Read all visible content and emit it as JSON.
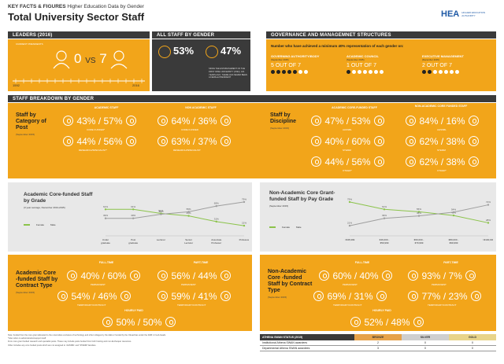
{
  "header": {
    "kicker_bold": "KEY FACTS & FIGURES",
    "kicker_rest": " Higher Education Data by Gender",
    "title": "Total University Sector Staff",
    "logo_text": "HEA",
    "logo_sub": "HIGHER EDUCATION AUTHORITY"
  },
  "leaders": {
    "bar_label": "LEADERS (2016)",
    "current_label": "CURRENT PRESIDENTS",
    "female": "0",
    "vs": "VS",
    "male": "7",
    "year_start": "1592",
    "year_end": "2016"
  },
  "all_staff": {
    "bar_label": "ALL STAFF BY GENDER",
    "female_pct": "53%",
    "male_pct": "47%",
    "note": "SINCE THE ESTABLISHMENT OF THE FIRST IRISH UNIVERSITY (1592), 424 YEARS AGO, THERE HAS NEVER BEEN A FEMALE PRESIDENT"
  },
  "governance": {
    "bar_label": "GOVERNANCE AND MANAGEMNET STRUCTURES",
    "intro": "Number who have achieved a minimum 40% representation of each gender on:",
    "items": [
      {
        "title": "GOVERNING AUTHORITY/BODY",
        "date": "(September 2015)",
        "value": "5 OUT OF 7",
        "filled": 5
      },
      {
        "title": "ACADEMIC COUNCIL",
        "date": "(September 2015)",
        "value": "1 OUT OF 7",
        "filled": 1
      },
      {
        "title": "EXECUTIVE MANAGEMENT",
        "date": "(December 2015)",
        "value": "2 OUT OF 7",
        "filled": 2
      }
    ]
  },
  "breakdown": {
    "bar_label": "STAFF BREAKDOWN BY GENDER",
    "post": {
      "title": "Staff by Category of Post",
      "date": "(September 2015)",
      "academic_head": "ACADEMIC STAFF",
      "nonacademic_head": "NON ACADEMIC STAFF",
      "rows": [
        {
          "a": "43%",
          "b": "57%",
          "label": "CORE FUNDED*"
        },
        {
          "a": "44%",
          "b": "56%",
          "label": "RESEARCH/SPECIALIST*"
        }
      ],
      "rows_na": [
        {
          "a": "64%",
          "b": "36%",
          "label": "CORE FUNDED"
        },
        {
          "a": "63%",
          "b": "37%",
          "label": "RESEARCH/SPECIALIST"
        }
      ]
    },
    "discipline": {
      "title": "Staff by Discipline",
      "date": "(September 2015)",
      "academic_head": "ACADEMIC CORE-FUNDED STAFF",
      "nonacademic_head": "NON-ACADEMIC CORE FUNDED STAFF",
      "rows": [
        {
          "a": "47%",
          "b": "53%",
          "label": "AHSSBL"
        },
        {
          "a": "40%",
          "b": "60%",
          "label": "STEMM"
        },
        {
          "a": "44%",
          "b": "56%",
          "label": "OTHER*"
        }
      ],
      "rows_na": [
        {
          "a": "84%",
          "b": "16%",
          "label": "AHSSBL"
        },
        {
          "a": "62%",
          "b": "38%",
          "label": "STEMM"
        },
        {
          "a": "62%",
          "b": "38%",
          "label": "OTHER*"
        }
      ]
    }
  },
  "grade_chart": {
    "title": "Academic Core-funded Staff by Grade",
    "subtitle": "(3 year average, December 2013-2015)",
    "legend_female": "Female",
    "legend_male": "Male"
  },
  "pay_chart": {
    "title": "Non-Academic Core Grant-funded Staff by Pay Grade",
    "subtitle": "(September 2015)",
    "legend_female": "Female",
    "legend_male": "Male"
  },
  "chart_data": [
    {
      "type": "line",
      "categories": [
        "Under graduate",
        "Post graduate",
        "Lecturer",
        "Senior Lecturer",
        "Associate Professor",
        "Professor"
      ],
      "series": [
        {
          "name": "Female",
          "values": [
            61,
            61,
            51,
            45,
            31,
            21
          ],
          "color": "#8bc34a"
        },
        {
          "name": "Male",
          "values": [
            39,
            39,
            49,
            55,
            69,
            79
          ],
          "color": "#9e9e9e"
        }
      ],
      "ylim": [
        0,
        100
      ]
    },
    {
      "type": "line",
      "categories": [
        "<€45,999",
        "€46,000 - €59,999",
        "€60,000 - €79,999",
        "€80,000 - €99,999",
        ">€100,000"
      ],
      "series": [
        {
          "name": "Female",
          "values": [
            79,
            61,
            55,
            46,
            28
          ],
          "color": "#8bc34a"
        },
        {
          "name": "Male",
          "values": [
            21,
            39,
            45,
            54,
            72
          ],
          "color": "#9e9e9e"
        }
      ],
      "ylim": [
        0,
        100
      ]
    }
  ],
  "contract": {
    "academic": {
      "title": "Academic Core -funded Staff by Contract Type",
      "date": "(September 2015)",
      "full_head": "FULL-TIME",
      "part_head": "PART-TIME",
      "hourly_head": "HOURLY PAID",
      "full": [
        {
          "a": "40%",
          "b": "60%",
          "label": "PERMANENT"
        },
        {
          "a": "54%",
          "b": "46%",
          "label": "TEMPORARY/CONTRACT"
        }
      ],
      "part": [
        {
          "a": "56%",
          "b": "44%",
          "label": "PERMANENT"
        },
        {
          "a": "59%",
          "b": "41%",
          "label": "TEMPORARY/CONTRACT"
        }
      ],
      "hourly": {
        "a": "50%",
        "b": "50%"
      }
    },
    "nonacademic": {
      "title": "Non-Academic Core -funded Staff by Contract Type",
      "date": "(September 2015)",
      "full_head": "FULL-TIME",
      "part_head": "PART-TIME",
      "hourly_head": "HOURLY PAID",
      "full": [
        {
          "a": "60%",
          "b": "40%",
          "label": "PERMANENT"
        },
        {
          "a": "69%",
          "b": "31%",
          "label": "TEMPORARY/CONTRACT"
        }
      ],
      "part": [
        {
          "a": "93%",
          "b": "7%",
          "label": "PERMANENT"
        },
        {
          "a": "77%",
          "b": "23%",
          "label": "TEMPORARY/CONTRACT"
        }
      ],
      "hourly": {
        "a": "52%",
        "b": "48%"
      }
    }
  },
  "footnotes": [
    "Note: funded from the core grant allocated to the universities exclusive of technology and other colleges by the HEA or funded by the Oireachtas under the DAB 1.0 sub-heads",
    "*Also refers to administration/support staff",
    "From core grant funded research and specialist posts. These may include posts funded from both hosting and non-Exchequer resources.",
    "Other includes any core funded posts which are not assigned to 'AHSSBL' and 'STEMM' faculties."
  ],
  "athena": {
    "title": "ATHENA SWAN STATUS (2015)",
    "cols": [
      "BRONZE",
      "SILVER",
      "GOLD"
    ],
    "rows": [
      {
        "label": "Institutional Athena SWAN awardees",
        "values": [
          "2",
          "0",
          "0"
        ]
      },
      {
        "label": "Departmental Athena SWAN awardees",
        "values": [
          "3",
          "0",
          "0"
        ]
      }
    ]
  },
  "colors": {
    "accent": "#f2a51a",
    "dark": "#3a3a3a",
    "female": "#8bc34a",
    "male": "#9e9e9e"
  }
}
